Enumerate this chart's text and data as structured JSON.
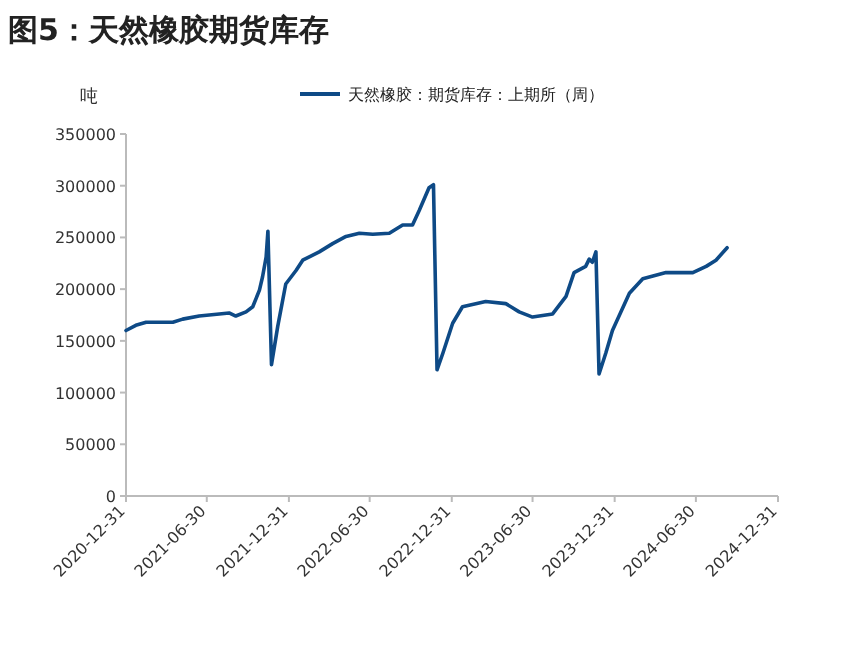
{
  "chart_data": {
    "type": "line",
    "title": "图5：天然橡胶期货库存",
    "ylabel": "吨",
    "legend": "top",
    "ylim": [
      0,
      350000
    ],
    "yticks": [
      0,
      50000,
      100000,
      150000,
      200000,
      250000,
      300000,
      350000
    ],
    "xlim": [
      "2020-12-31",
      "2024-12-31"
    ],
    "xticks": [
      "2020-12-31",
      "2021-06-30",
      "2021-12-31",
      "2022-06-30",
      "2022-12-31",
      "2023-06-30",
      "2023-12-31",
      "2024-06-30",
      "2024-12-31"
    ],
    "x": [
      "2020-12-31",
      "2021-01-22",
      "2021-02-14",
      "2021-04-15",
      "2021-05-07",
      "2021-06-13",
      "2021-07-28",
      "2021-08-19",
      "2021-09-03",
      "2021-09-26",
      "2021-10-11",
      "2021-10-26",
      "2021-11-02",
      "2021-11-10",
      "2021-11-14",
      "2021-11-22",
      "2021-12-06",
      "2021-12-24",
      "2022-01-16",
      "2022-01-31",
      "2022-03-09",
      "2022-04-08",
      "2022-05-08",
      "2022-06-07",
      "2022-07-07",
      "2022-08-13",
      "2022-09-12",
      "2022-10-04",
      "2022-10-19",
      "2022-11-10",
      "2022-11-20",
      "2022-11-28",
      "2022-12-11",
      "2023-01-02",
      "2023-01-24",
      "2023-03-17",
      "2023-05-01",
      "2023-05-31",
      "2023-06-30",
      "2023-08-14",
      "2023-09-13",
      "2023-10-01",
      "2023-10-27",
      "2023-11-04",
      "2023-11-11",
      "2023-11-19",
      "2023-11-26",
      "2023-12-11",
      "2023-12-26",
      "2024-02-02",
      "2024-03-03",
      "2024-04-24",
      "2024-06-23",
      "2024-07-23",
      "2024-08-14",
      "2024-09-08"
    ],
    "series": [
      {
        "name": "天然橡胶：期货库存：上期所（周）",
        "color": "#0e4a86",
        "values": [
          160000,
          165000,
          168000,
          168000,
          171000,
          174000,
          176000,
          177000,
          174000,
          178000,
          183000,
          199000,
          212000,
          231000,
          256000,
          127000,
          164000,
          205000,
          218000,
          228000,
          236000,
          244000,
          251000,
          254000,
          253000,
          254000,
          262000,
          262000,
          276000,
          298000,
          301000,
          122000,
          138000,
          167000,
          183000,
          188000,
          186000,
          178000,
          173000,
          176000,
          193000,
          216000,
          222000,
          229000,
          226000,
          236000,
          118000,
          138000,
          160000,
          196000,
          210000,
          216000,
          216000,
          222000,
          228000,
          240000
        ]
      }
    ]
  }
}
